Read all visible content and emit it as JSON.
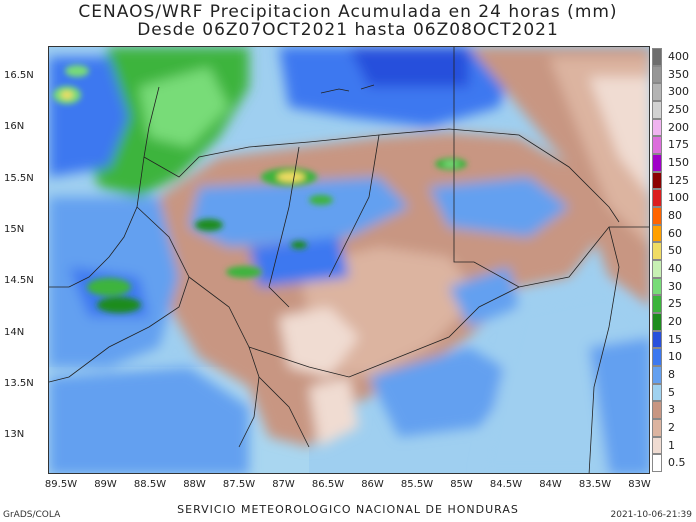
{
  "title_line1": "CENAOS/WRF Precipitacion Acumulada en 24 horas (mm)",
  "title_line2": "Desde 06Z07OCT2021 hasta 06Z08OCT2021",
  "footer": "SERVICIO METEOROLOGICO NACIONAL DE HONDURAS",
  "credit": "GrADS/COLA",
  "timestamp": "2021-10-06-21:39",
  "lat_labels": [
    "16.5N",
    "16N",
    "15.5N",
    "15N",
    "14.5N",
    "14N",
    "13.5N",
    "13N"
  ],
  "lon_labels": [
    "89.5W",
    "89W",
    "88.5W",
    "88W",
    "87.5W",
    "87W",
    "86.5W",
    "86W",
    "85.5W",
    "85W",
    "84.5W",
    "84W",
    "83.5W",
    "83W"
  ],
  "legend": [
    {
      "label": "400",
      "color": "#6e6e6e"
    },
    {
      "label": "350",
      "color": "#969696"
    },
    {
      "label": "300",
      "color": "#b4b4b4"
    },
    {
      "label": "250",
      "color": "#d2d2d2"
    },
    {
      "label": "200",
      "color": "#f0b4f0"
    },
    {
      "label": "175",
      "color": "#dc6edc"
    },
    {
      "label": "150",
      "color": "#a000c8"
    },
    {
      "label": "125",
      "color": "#8c0000"
    },
    {
      "label": "100",
      "color": "#dc1e1e"
    },
    {
      "label": "80",
      "color": "#ff6400"
    },
    {
      "label": "60",
      "color": "#ffa000"
    },
    {
      "label": "50",
      "color": "#f0dc64"
    },
    {
      "label": "40",
      "color": "#c8f0b4"
    },
    {
      "label": "30",
      "color": "#78dc78"
    },
    {
      "label": "25",
      "color": "#3cb43c"
    },
    {
      "label": "20",
      "color": "#1e8c1e"
    },
    {
      "label": "15",
      "color": "#2850dc"
    },
    {
      "label": "10",
      "color": "#3c78f0"
    },
    {
      "label": "8",
      "color": "#64a0f0"
    },
    {
      "label": "5",
      "color": "#a0d2f0"
    },
    {
      "label": "3",
      "color": "#c89682"
    },
    {
      "label": "2",
      "color": "#dcb4a0"
    },
    {
      "label": "1",
      "color": "#f0dcd2"
    },
    {
      "label": "0.5",
      "color": "#ffffff"
    }
  ]
}
